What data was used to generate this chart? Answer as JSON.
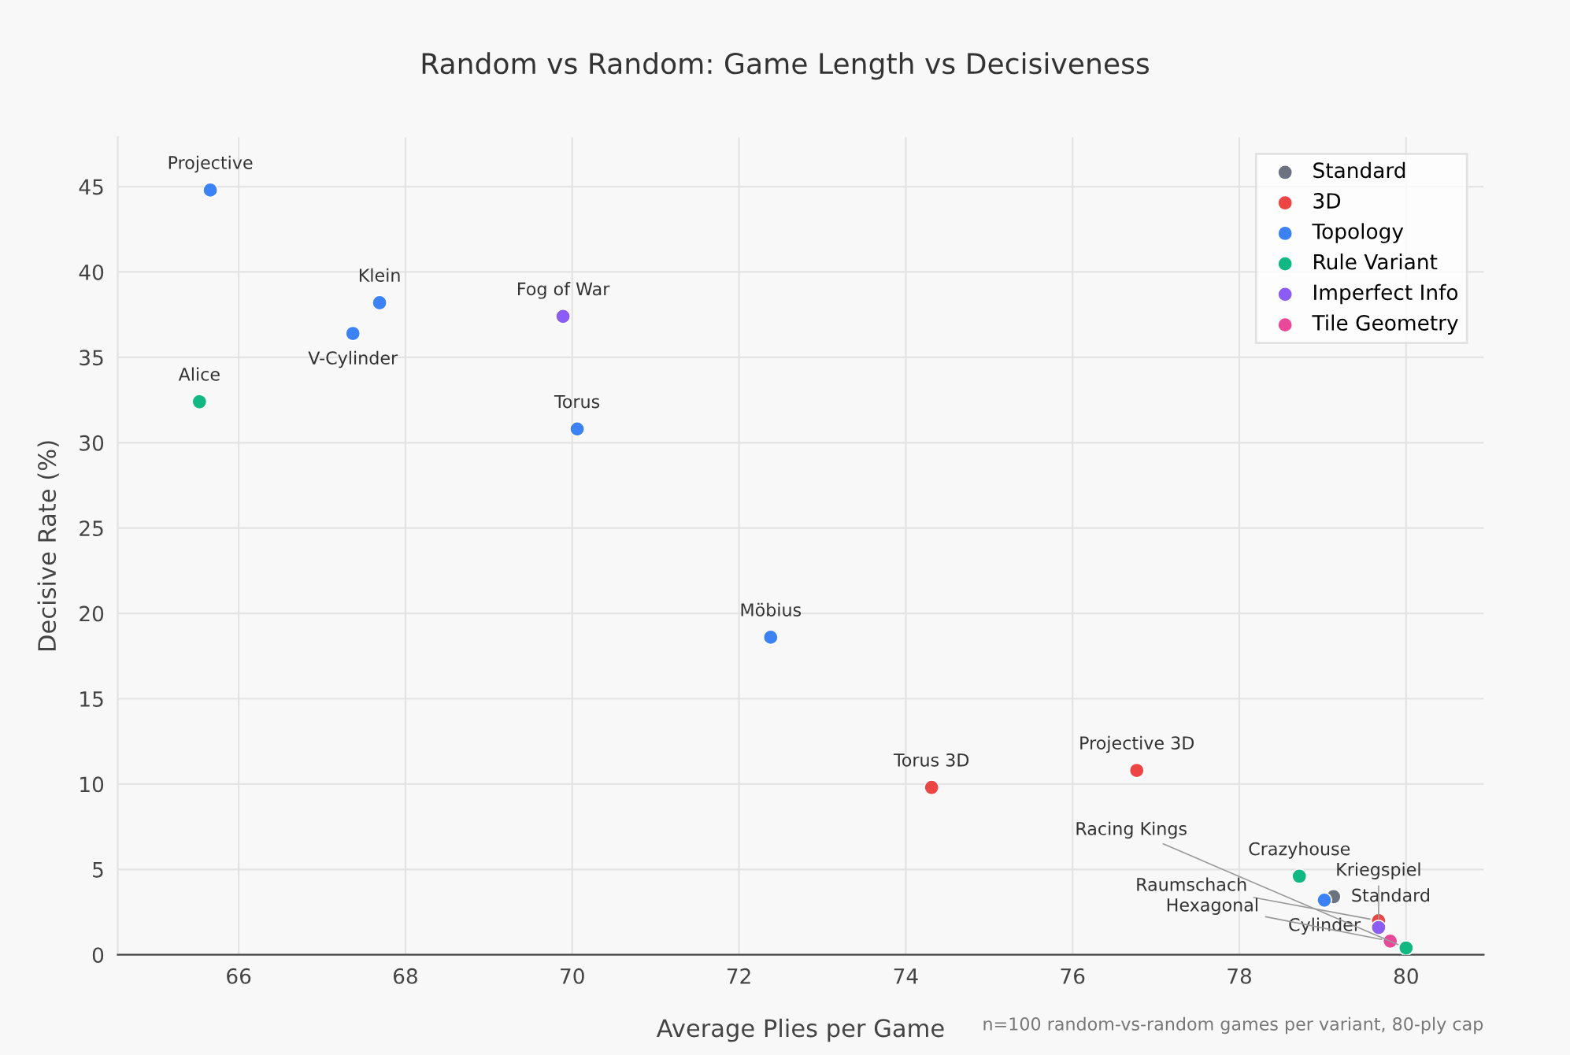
{
  "chart_data": {
    "type": "scatter",
    "title": "Random vs Random: Game Length vs Decisiveness",
    "xlabel": "Average Plies per Game",
    "ylabel": "Decisive Rate (%)",
    "series": [
      {
        "name": "Standard",
        "color": "#6b7280",
        "x": [
          79.13
        ],
        "values": [
          3.4
        ]
      },
      {
        "name": "3D",
        "color": "#ef4444",
        "x": [
          74.31,
          76.77,
          79.67
        ],
        "values": [
          9.8,
          10.8,
          2.0
        ]
      },
      {
        "name": "Topology",
        "color": "#3b82f6",
        "x": [
          65.66,
          67.69,
          67.37,
          70.06,
          72.38,
          79.02
        ],
        "values": [
          44.8,
          38.2,
          36.4,
          30.8,
          18.6,
          3.2
        ]
      },
      {
        "name": "Rule Variant",
        "color": "#10b981",
        "x": [
          65.53,
          78.72,
          80.0
        ],
        "values": [
          32.4,
          4.6,
          0.4
        ]
      },
      {
        "name": "Imperfect Info",
        "color": "#8b5cf6",
        "x": [
          69.89,
          79.67
        ],
        "values": [
          37.4,
          1.6
        ]
      },
      {
        "name": "Tile Geometry",
        "color": "#ec4899",
        "x": [
          79.81
        ],
        "values": [
          0.8
        ]
      }
    ],
    "annotations": [
      {
        "text": "Projective",
        "x": 65.66,
        "y": 44.8
      },
      {
        "text": "Klein",
        "x": 67.69,
        "y": 38.2
      },
      {
        "text": "V-Cylinder",
        "x": 67.37,
        "y": 36.4
      },
      {
        "text": "Fog of War",
        "x": 69.89,
        "y": 37.4
      },
      {
        "text": "Alice",
        "x": 65.53,
        "y": 32.4
      },
      {
        "text": "Torus",
        "x": 70.06,
        "y": 30.8
      },
      {
        "text": "Möbius",
        "x": 72.38,
        "y": 18.6
      },
      {
        "text": "Torus 3D",
        "x": 74.31,
        "y": 9.8
      },
      {
        "text": "Projective 3D",
        "x": 76.77,
        "y": 10.8
      },
      {
        "text": "Crazyhouse",
        "x": 78.72,
        "y": 4.6
      },
      {
        "text": "Standard",
        "x": 79.13,
        "y": 3.4
      },
      {
        "text": "Cylinder",
        "x": 79.02,
        "y": 3.2
      },
      {
        "text": "Raumschach",
        "x": 79.67,
        "y": 2.0
      },
      {
        "text": "Kriegspiel",
        "x": 79.67,
        "y": 1.6
      },
      {
        "text": "Hexagonal",
        "x": 79.81,
        "y": 0.8
      },
      {
        "text": "Racing Kings",
        "x": 80.0,
        "y": 0.4
      },
      "n=100 random-vs-random games per variant, 80-ply cap"
    ],
    "xlim": [
      64.55,
      80.93
    ],
    "ylim": [
      0,
      47.9
    ],
    "xticks": [
      66,
      68,
      70,
      72,
      74,
      76,
      78,
      80
    ],
    "yticks": [
      0,
      5,
      10,
      15,
      20,
      25,
      30,
      35,
      40,
      45
    ],
    "grid": true,
    "legend": "top right",
    "marker": "circle"
  }
}
